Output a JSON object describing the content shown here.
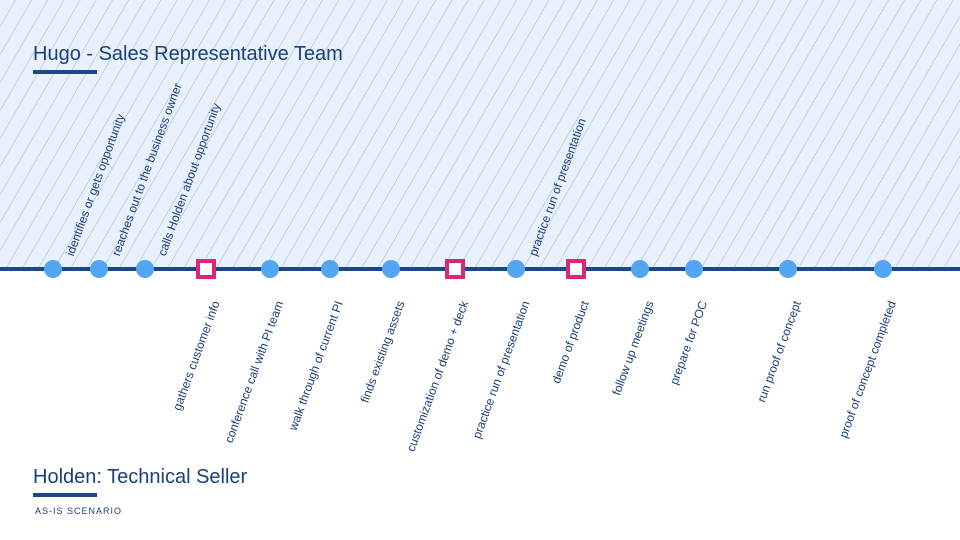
{
  "lanes": {
    "top_title": "Hugo - Sales Representative Team",
    "bottom_title": "Holden: Technical Seller"
  },
  "scenario_tag": "AS-IS SCENARIO",
  "colors": {
    "primary_navy": "#1a4a86",
    "text_navy": "#1a3f7a",
    "milestone_blue": "#55a6f2",
    "decision_magenta": "#d8287a",
    "top_zone_fill": "#e9f1fc"
  },
  "timeline": {
    "events": [
      {
        "id": "e1",
        "shape": "circle",
        "lane": "top",
        "label": "identifies or gets opportunity"
      },
      {
        "id": "e2",
        "shape": "circle",
        "lane": "top",
        "label": "reaches out to the business owner"
      },
      {
        "id": "e3",
        "shape": "circle",
        "lane": "top",
        "label": "calls Holden about opportunity"
      },
      {
        "id": "e4",
        "shape": "square",
        "lane": "bottom",
        "label": "gathers customer info"
      },
      {
        "id": "e5",
        "shape": "circle",
        "lane": "bottom",
        "label": "conference call with PI team"
      },
      {
        "id": "e6",
        "shape": "circle",
        "lane": "bottom",
        "label": "walk through of current PI"
      },
      {
        "id": "e7",
        "shape": "circle",
        "lane": "bottom",
        "label": "finds existing assets"
      },
      {
        "id": "e8",
        "shape": "square",
        "lane": "bottom",
        "label": "customization of demo + deck"
      },
      {
        "id": "e9a",
        "shape": "circle",
        "lane": "top",
        "label": "practice run of presentation"
      },
      {
        "id": "e9b",
        "shape": "none",
        "lane": "bottom",
        "label": "practice run of presentation"
      },
      {
        "id": "e10",
        "shape": "square",
        "lane": "bottom",
        "label": "demo of product"
      },
      {
        "id": "e11",
        "shape": "circle",
        "lane": "bottom",
        "label": "follow up meetings"
      },
      {
        "id": "e12",
        "shape": "circle",
        "lane": "bottom",
        "label": "prepare for POC"
      },
      {
        "id": "e13",
        "shape": "circle",
        "lane": "bottom",
        "label": "run proof of concept"
      },
      {
        "id": "e14",
        "shape": "circle",
        "lane": "bottom",
        "label": "proof of concept completed"
      }
    ]
  }
}
